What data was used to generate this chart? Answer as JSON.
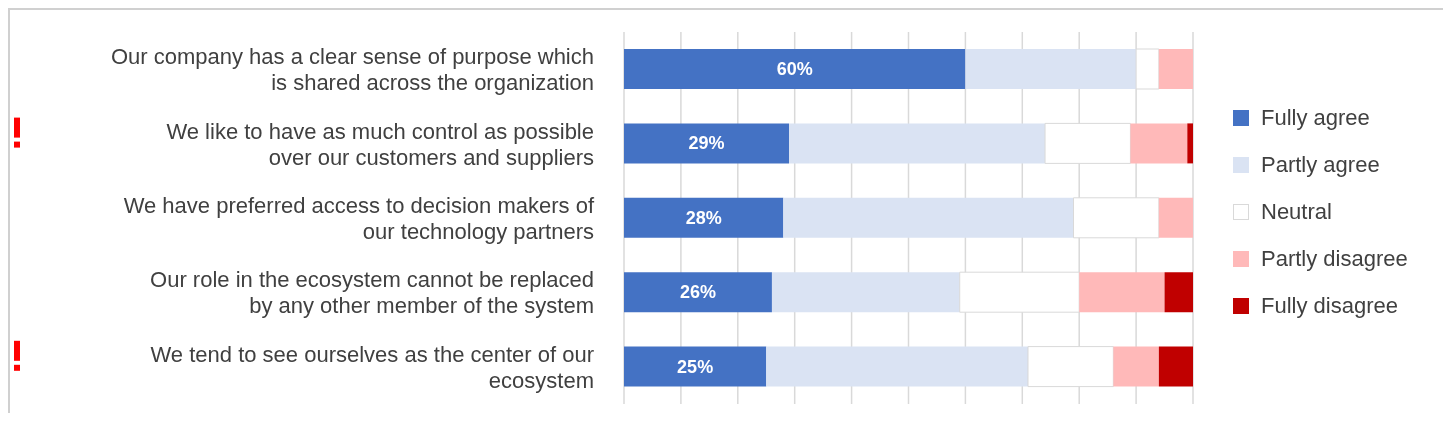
{
  "chart_data": {
    "type": "bar",
    "orientation": "horizontal",
    "stacked": true,
    "categories": [
      "Our company has a clear sense of purpose which is shared across the organization",
      "We like to have as much control as possible over our customers and suppliers",
      "We have preferred access to decision makers of our technology partners",
      "Our role in the ecosystem cannot be replaced by any other member of the system",
      "We tend to see ourselves as the center of our ecosystem"
    ],
    "series": [
      {
        "name": "Fully agree",
        "color": "#4472c4",
        "values": [
          60,
          29,
          28,
          26,
          25
        ],
        "value_labels": [
          "60%",
          "29%",
          "28%",
          "26%",
          "25%"
        ]
      },
      {
        "name": "Partly agree",
        "color": "#dae3f3",
        "values": [
          30,
          45,
          51,
          33,
          46
        ]
      },
      {
        "name": "Neutral",
        "color": "#ffffff",
        "values": [
          4,
          15,
          15,
          21,
          15
        ]
      },
      {
        "name": "Partly disagree",
        "color": "#ffb9b9",
        "values": [
          6,
          10,
          6,
          15,
          8
        ]
      },
      {
        "name": "Fully disagree",
        "color": "#c00000",
        "values": [
          0,
          1,
          0,
          5,
          6
        ]
      }
    ],
    "xlim": [
      0,
      100
    ],
    "grid": "x",
    "legend": "right",
    "tick_labels": "y"
  }
}
